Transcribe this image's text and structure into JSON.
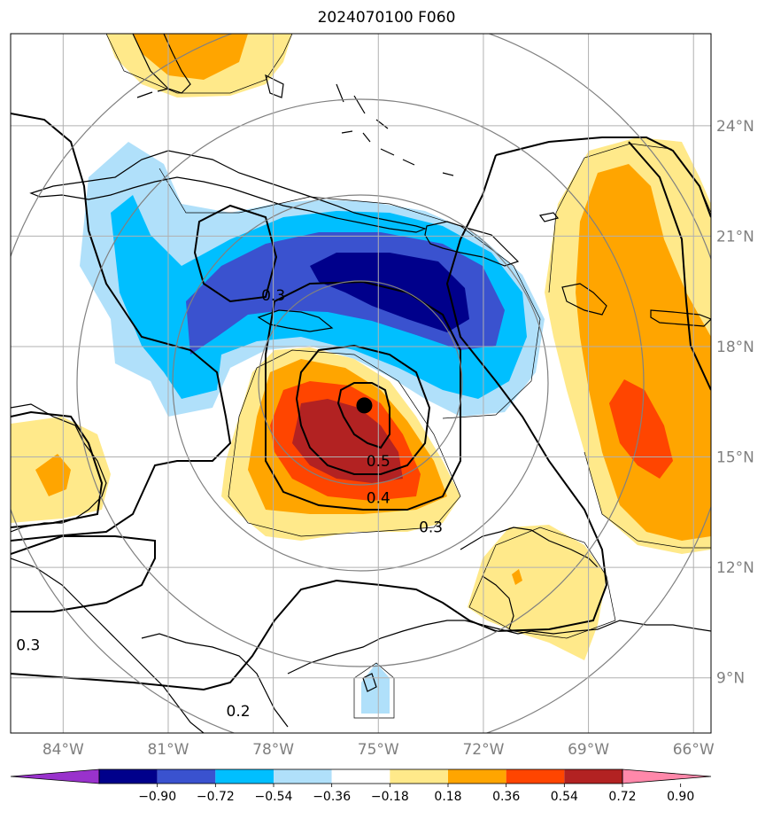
{
  "title": "2024070100 F060",
  "center_marker": {
    "name": "storm-center",
    "lon": -75.4,
    "lat": 16.4
  },
  "map": {
    "lon_range": [
      -85.5,
      -65.5
    ],
    "lat_range": [
      7.5,
      26.5
    ],
    "lat_ticks": [
      {
        "value": 24,
        "label": "24°N"
      },
      {
        "value": 21,
        "label": "21°N"
      },
      {
        "value": 18,
        "label": "18°N"
      },
      {
        "value": 15,
        "label": "15°N"
      },
      {
        "value": 12,
        "label": "12°N"
      },
      {
        "value": 9,
        "label": "9°N"
      }
    ],
    "lon_ticks": [
      {
        "value": -84,
        "label": "84°W"
      },
      {
        "value": -81,
        "label": "81°W"
      },
      {
        "value": -78,
        "label": "78°W"
      },
      {
        "value": -75,
        "label": "75°W"
      },
      {
        "value": -72,
        "label": "72°W"
      },
      {
        "value": -69,
        "label": "69°W"
      },
      {
        "value": -66,
        "label": "66°W"
      }
    ],
    "grid": true
  },
  "contour_labels": [
    {
      "text": "0.5",
      "lon": -75.0,
      "lat": 14.8
    },
    {
      "text": "0.4",
      "lon": -75.0,
      "lat": 13.8
    },
    {
      "text": "0.3",
      "lon": -73.5,
      "lat": 13.0
    },
    {
      "text": "0.3",
      "lon": -78.0,
      "lat": 19.3
    },
    {
      "text": "0.2",
      "lon": -79.0,
      "lat": 8.0
    },
    {
      "text": "0.3",
      "lon": -85.0,
      "lat": 9.8
    }
  ],
  "colorbar": {
    "colors": [
      "#9932cc",
      "#00008b",
      "#3a52cf",
      "#00bfff",
      "#b0e0fa",
      "#ffffff",
      "#ffe98a",
      "#ffa500",
      "#ff4500",
      "#b22222",
      "#ff88aa"
    ],
    "labels": [
      "−0.90",
      "−0.72",
      "−0.54",
      "−0.36",
      "−0.18",
      "0.18",
      "0.36",
      "0.54",
      "0.72",
      "0.90"
    ]
  }
}
